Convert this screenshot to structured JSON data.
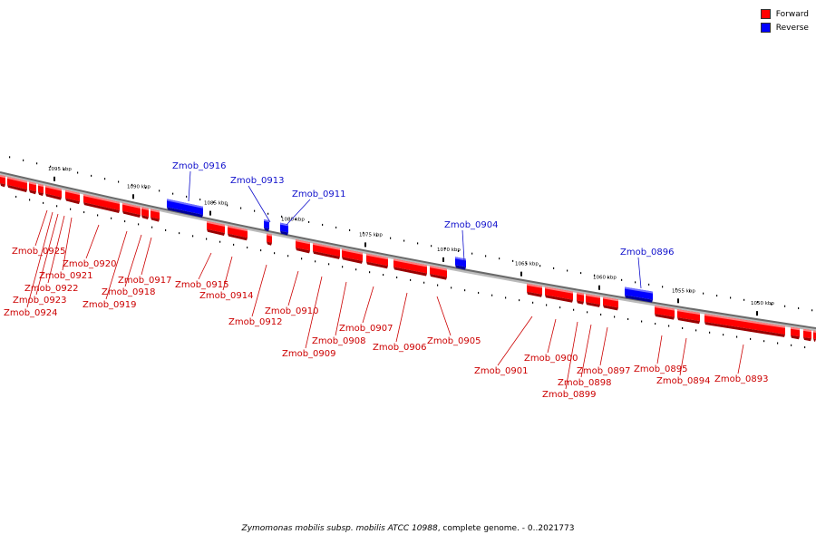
{
  "legend": {
    "forward": {
      "label": "Forward",
      "color": "#ff0000"
    },
    "reverse": {
      "label": "Reverse",
      "color": "#0000ff"
    }
  },
  "caption": {
    "organism": "Zymomonas mobilis subsp. mobilis ATCC 10988",
    "rest": ", complete genome. - 0..2021773"
  },
  "ticks": [
    "1095 kbp",
    "1090 kbp",
    "1085 kbp",
    "1080 kbp",
    "1075 kbp",
    "1070 kbp",
    "1065 kbp",
    "1060 kbp",
    "1055 kbp",
    "1050 kbp"
  ],
  "genes": {
    "forward": [
      "Zmob_0925",
      "Zmob_0924",
      "Zmob_0923",
      "Zmob_0922",
      "Zmob_0921",
      "Zmob_0920",
      "Zmob_0919",
      "Zmob_0918",
      "Zmob_0917",
      "Zmob_0915",
      "Zmob_0914",
      "Zmob_0912",
      "Zmob_0910",
      "Zmob_0909",
      "Zmob_0908",
      "Zmob_0907",
      "Zmob_0906",
      "Zmob_0905",
      "Zmob_0901",
      "Zmob_0900",
      "Zmob_0899",
      "Zmob_0898",
      "Zmob_0897",
      "Zmob_0895",
      "Zmob_0894",
      "Zmob_0893"
    ],
    "reverse": [
      "Zmob_0916",
      "Zmob_0913",
      "Zmob_0911",
      "Zmob_0904",
      "Zmob_0896"
    ]
  }
}
